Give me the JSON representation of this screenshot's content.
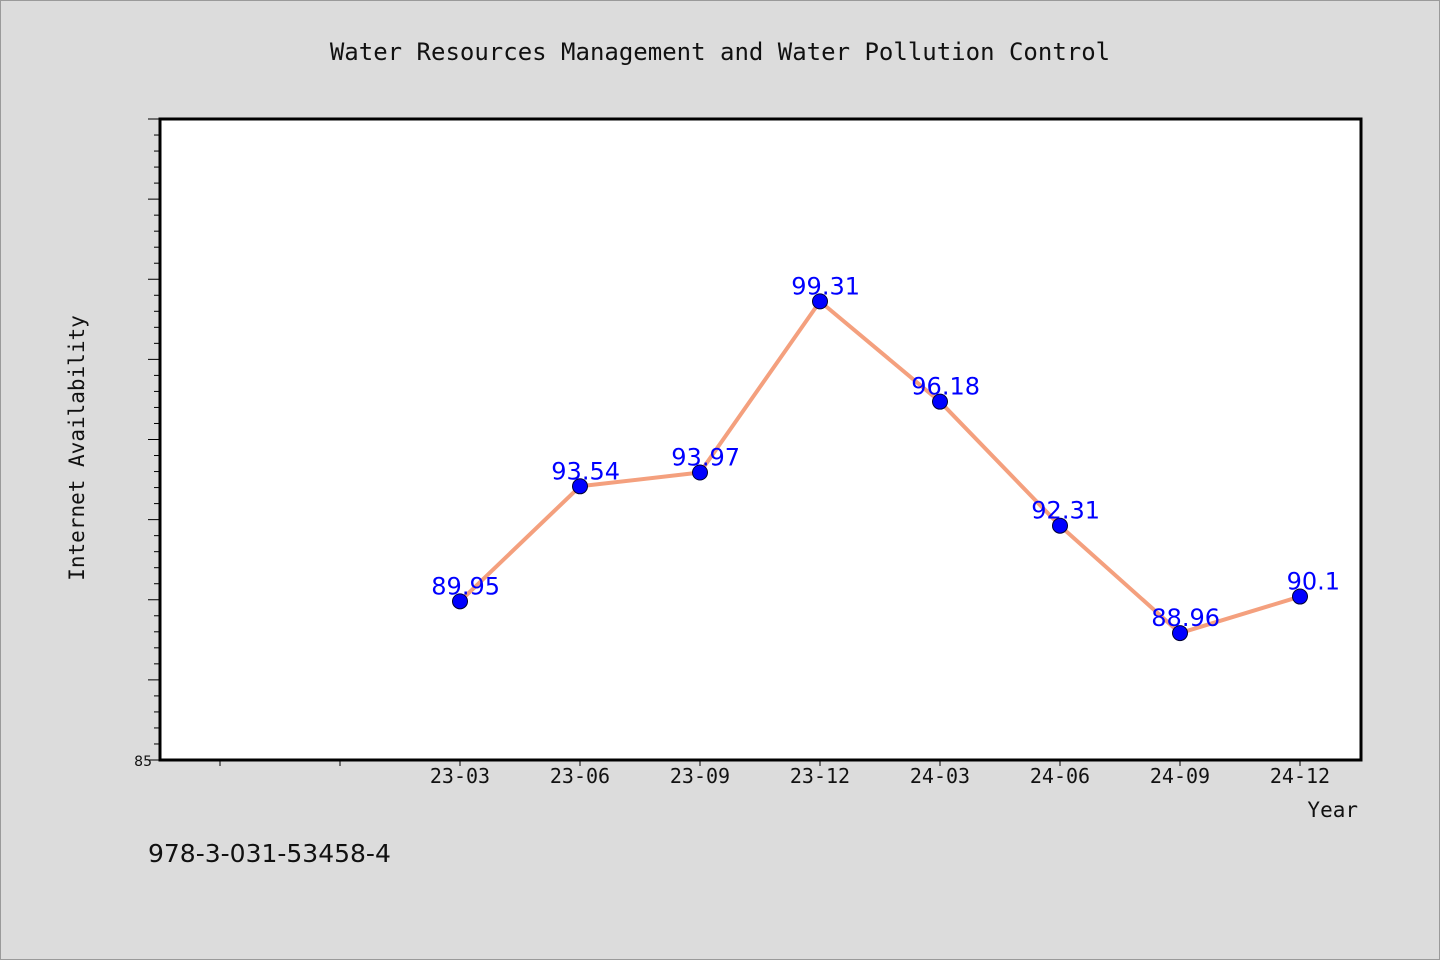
{
  "chart_data": {
    "type": "line",
    "title": "Water Resources Management and Water Pollution Control",
    "xlabel": "Year",
    "ylabel": "Internet Availability",
    "categories": [
      "23-03",
      "23-06",
      "23-09",
      "23-12",
      "24-03",
      "24-06",
      "24-09",
      "24-12"
    ],
    "values": [
      89.95,
      93.54,
      93.97,
      99.31,
      96.18,
      92.31,
      88.96,
      90.1
    ],
    "value_labels": [
      "89.95",
      "93.54",
      "93.97",
      "99.31",
      "96.18",
      "92.31",
      "88.96",
      "90.1"
    ],
    "ylim": [
      85,
      105
    ],
    "yticks_labeled": [
      "85"
    ],
    "grid": false,
    "line_color": "#f4a07e",
    "marker_color": "#0000ff",
    "label_color": "#0000ff"
  },
  "footer": {
    "isbn": "978-3-031-53458-4"
  }
}
